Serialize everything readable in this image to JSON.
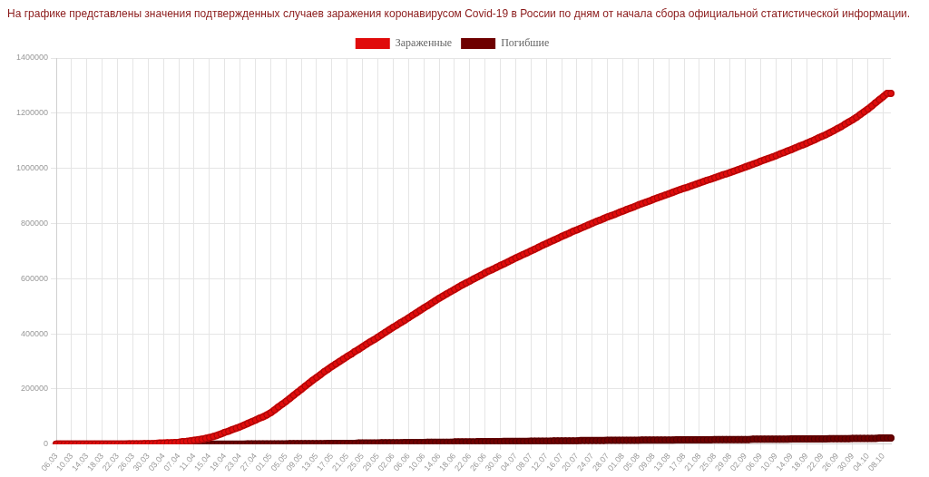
{
  "chart_data": {
    "type": "line",
    "title": "На графике представлены значения подтвержденных случаев заражения коронавирусом Covid-19 в России по дням от начала сбора официальной статистической информации.",
    "categories": [
      "06.03",
      null,
      null,
      null,
      "10.03",
      null,
      null,
      null,
      "14.03",
      null,
      null,
      null,
      "18.03",
      null,
      null,
      null,
      "22.03",
      null,
      null,
      null,
      "26.03",
      null,
      null,
      null,
      "30.03",
      null,
      null,
      null,
      "03.04",
      null,
      null,
      null,
      "07.04",
      null,
      null,
      null,
      "11.04",
      null,
      null,
      null,
      "15.04",
      null,
      null,
      null,
      "19.04",
      null,
      null,
      null,
      "23.04",
      null,
      null,
      null,
      "27.04",
      null,
      null,
      null,
      "01.05",
      null,
      null,
      null,
      "05.05",
      null,
      null,
      null,
      "09.05",
      null,
      null,
      null,
      "13.05",
      null,
      null,
      null,
      "17.05",
      null,
      null,
      null,
      "21.05",
      null,
      null,
      null,
      "25.05",
      null,
      null,
      null,
      "29.05",
      null,
      null,
      null,
      "02.06",
      null,
      null,
      null,
      "06.06",
      null,
      null,
      null,
      "10.06",
      null,
      null,
      null,
      "14.06",
      null,
      null,
      null,
      "18.06",
      null,
      null,
      null,
      "22.06",
      null,
      null,
      null,
      "26.06",
      null,
      null,
      null,
      "30.06",
      null,
      null,
      null,
      "04.07",
      null,
      null,
      null,
      "08.07",
      null,
      null,
      null,
      "12.07",
      null,
      null,
      null,
      "16.07",
      null,
      null,
      null,
      "20.07",
      null,
      null,
      null,
      "24.07",
      null,
      null,
      null,
      "28.07",
      null,
      null,
      null,
      "01.08",
      null,
      null,
      null,
      "05.08",
      null,
      null,
      null,
      "09.08",
      null,
      null,
      null,
      "13.08",
      null,
      null,
      null,
      "17.08",
      null,
      null,
      null,
      "21.08",
      null,
      null,
      null,
      "25.08",
      null,
      null,
      null,
      "29.08",
      null,
      null,
      null,
      "02.09",
      null,
      null,
      null,
      "06.09",
      null,
      null,
      null,
      "10.09",
      null,
      null,
      null,
      "14.09",
      null,
      null,
      null,
      "18.09",
      null,
      null,
      null,
      "22.09",
      null,
      null,
      null,
      "26.09",
      null,
      null,
      null,
      "30.09",
      null,
      null,
      null,
      "04.10",
      null,
      null,
      null,
      "08.10",
      null,
      null
    ],
    "series": [
      {
        "name": "Зараженные",
        "color": "#e00b0b",
        "values": [
          0,
          0,
          0,
          0,
          0,
          0,
          0,
          0,
          0,
          0,
          0,
          0,
          0,
          0,
          0,
          0,
          0,
          0,
          0,
          1000,
          1000,
          1000,
          1000,
          2000,
          2000,
          2000,
          3000,
          4000,
          4000,
          5000,
          5000,
          6000,
          7000,
          9000,
          10000,
          12000,
          14000,
          16000,
          18000,
          21000,
          24000,
          28000,
          32000,
          37000,
          43000,
          47000,
          53000,
          58000,
          63000,
          69000,
          75000,
          81000,
          87000,
          94000,
          99000,
          106000,
          114000,
          124000,
          135000,
          145000,
          155000,
          166000,
          177000,
          188000,
          199000,
          210000,
          221000,
          232000,
          242000,
          252000,
          263000,
          272000,
          282000,
          291000,
          300000,
          309000,
          318000,
          326000,
          336000,
          344000,
          353000,
          362000,
          371000,
          379000,
          388000,
          397000,
          406000,
          415000,
          424000,
          432000,
          441000,
          449000,
          458000,
          467000,
          476000,
          485000,
          494000,
          502000,
          511000,
          520000,
          529000,
          537000,
          545000,
          553000,
          561000,
          569000,
          577000,
          584000,
          591000,
          599000,
          606000,
          613000,
          621000,
          628000,
          634000,
          641000,
          648000,
          654000,
          661000,
          668000,
          675000,
          681000,
          688000,
          694000,
          701000,
          707000,
          714000,
          721000,
          727000,
          734000,
          740000,
          746000,
          753000,
          759000,
          765000,
          772000,
          777000,
          783000,
          789000,
          795000,
          801000,
          807000,
          812000,
          818000,
          824000,
          829000,
          834000,
          840000,
          845000,
          851000,
          856000,
          861000,
          867000,
          872000,
          877000,
          882000,
          888000,
          893000,
          898000,
          903000,
          908000,
          913000,
          918000,
          923000,
          928000,
          932000,
          937000,
          942000,
          947000,
          952000,
          957000,
          961000,
          966000,
          971000,
          976000,
          980000,
          985000,
          990000,
          995000,
          1000000,
          1005000,
          1010000,
          1015000,
          1020000,
          1026000,
          1031000,
          1036000,
          1041000,
          1046000,
          1052000,
          1057000,
          1063000,
          1068000,
          1074000,
          1080000,
          1085000,
          1091000,
          1097000,
          1103000,
          1110000,
          1116000,
          1122000,
          1129000,
          1136000,
          1144000,
          1151000,
          1160000,
          1168000,
          1176000,
          1185000,
          1195000,
          1205000,
          1215000,
          1226000,
          1238000,
          1249000,
          1260000,
          1272000,
          1272000
        ]
      },
      {
        "name": "Погибшие",
        "color": "#6e0000",
        "values": [
          0,
          0,
          0,
          0,
          0,
          0,
          0,
          0,
          0,
          0,
          0,
          0,
          0,
          0,
          0,
          0,
          0,
          0,
          0,
          0,
          0,
          0,
          0,
          0,
          0,
          0,
          0,
          0,
          0,
          0,
          0,
          0,
          0,
          0,
          0,
          0,
          0,
          0,
          0,
          0,
          0,
          0,
          0,
          0,
          0,
          0,
          0,
          0,
          0,
          0,
          1000,
          1000,
          1000,
          1000,
          1000,
          1000,
          1000,
          1000,
          1000,
          1000,
          1000,
          2000,
          2000,
          2000,
          2000,
          2000,
          2000,
          2000,
          2000,
          2000,
          2000,
          3000,
          3000,
          3000,
          3000,
          3000,
          3000,
          3000,
          3000,
          4000,
          4000,
          4000,
          4000,
          4000,
          4000,
          5000,
          5000,
          5000,
          5000,
          5000,
          5000,
          6000,
          6000,
          6000,
          6000,
          6000,
          6000,
          7000,
          7000,
          7000,
          7000,
          7000,
          7000,
          7000,
          8000,
          8000,
          8000,
          8000,
          8000,
          8000,
          9000,
          9000,
          9000,
          9000,
          9000,
          9000,
          9000,
          10000,
          10000,
          10000,
          10000,
          10000,
          10000,
          10000,
          11000,
          11000,
          11000,
          11000,
          11000,
          11000,
          12000,
          12000,
          12000,
          12000,
          12000,
          12000,
          12000,
          13000,
          13000,
          13000,
          13000,
          13000,
          13000,
          13000,
          14000,
          14000,
          14000,
          14000,
          14000,
          14000,
          14000,
          14000,
          14000,
          15000,
          15000,
          15000,
          15000,
          15000,
          15000,
          15000,
          15000,
          15000,
          16000,
          16000,
          16000,
          16000,
          16000,
          16000,
          16000,
          16000,
          16000,
          16000,
          17000,
          17000,
          17000,
          17000,
          17000,
          17000,
          17000,
          17000,
          17000,
          17000,
          18000,
          18000,
          18000,
          18000,
          18000,
          18000,
          18000,
          18000,
          18000,
          18000,
          19000,
          19000,
          19000,
          19000,
          19000,
          19000,
          19000,
          19000,
          19000,
          19000,
          20000,
          20000,
          20000,
          20000,
          20000,
          20000,
          21000,
          21000,
          21000,
          21000,
          21000,
          21000,
          21000,
          22000,
          22000,
          22000,
          22000
        ]
      }
    ],
    "ylim": [
      0,
      1400000
    ],
    "yticks": [
      0,
      200000,
      400000,
      600000,
      800000,
      1000000,
      1200000,
      1400000
    ],
    "grid": true,
    "legend": "top",
    "marker": "circle"
  }
}
